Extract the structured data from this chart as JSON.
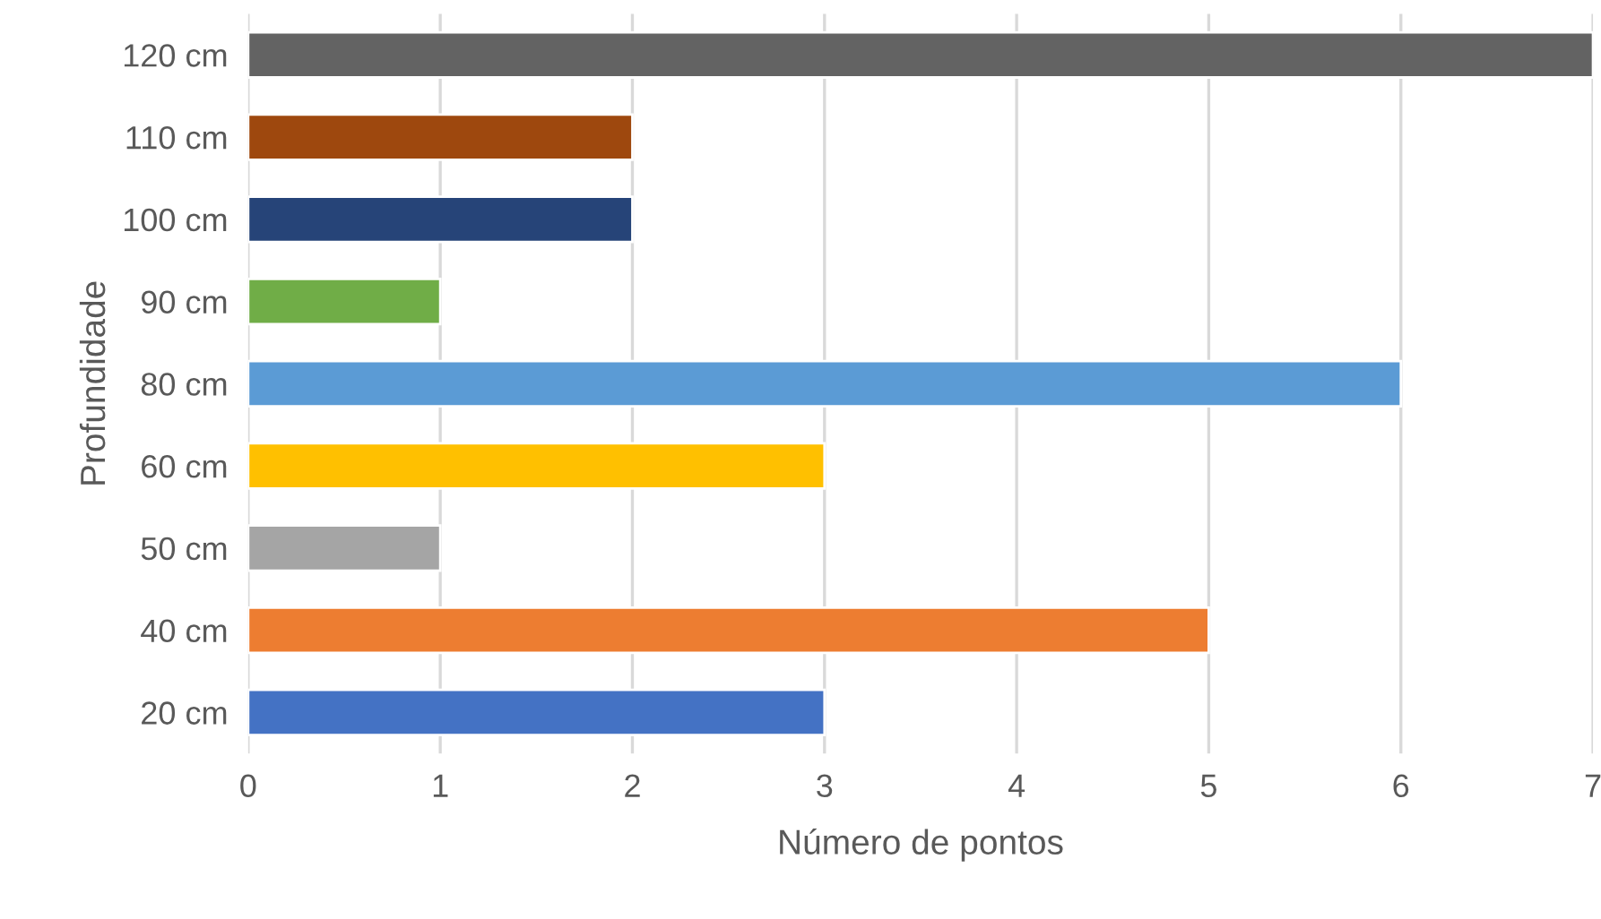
{
  "chart_data": {
    "type": "bar",
    "orientation": "horizontal",
    "xlabel": "Número de pontos",
    "ylabel": "Profundidade",
    "categories": [
      "120 cm",
      "110 cm",
      "100 cm",
      "90 cm",
      "80 cm",
      "60 cm",
      "50 cm",
      "40 cm",
      "20 cm"
    ],
    "values": [
      7,
      2,
      2,
      1,
      6,
      3,
      1,
      5,
      3
    ],
    "colors": [
      "#636363",
      "#9e480e",
      "#264478",
      "#70ad47",
      "#5b9bd5",
      "#ffc000",
      "#a5a5a5",
      "#ed7d31",
      "#4472c4"
    ],
    "xlim": [
      0,
      7
    ],
    "xticks": [
      0,
      1,
      2,
      3,
      4,
      5,
      6,
      7
    ],
    "grid": "x",
    "legend": false
  }
}
